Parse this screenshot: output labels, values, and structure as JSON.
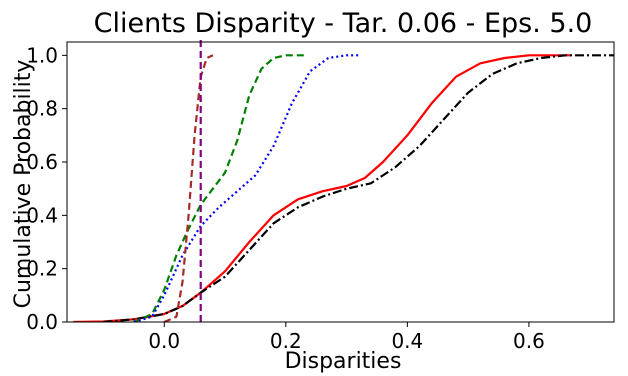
{
  "chart_data": {
    "type": "line",
    "title": "Clients Disparity - Tar. 0.06 - Eps. 5.0",
    "xlabel": "Disparities",
    "ylabel": "Cumulative Probability",
    "xlim": [
      -0.16,
      0.74
    ],
    "ylim": [
      0.0,
      1.05
    ],
    "xticks": [
      "0.0",
      "0.2",
      "0.4",
      "0.6"
    ],
    "xtick_values": [
      0.0,
      0.2,
      0.4,
      0.6
    ],
    "yticks": [
      "0.0",
      "0.2",
      "0.4",
      "0.6",
      "0.8",
      "1.0"
    ],
    "ytick_values": [
      0.0,
      0.2,
      0.4,
      0.6,
      0.8,
      1.0
    ],
    "grid": false,
    "legend": "none",
    "target_line": {
      "x": 0.06,
      "color": "#800080",
      "style": "dashed"
    },
    "series": [
      {
        "color": "#ff0000",
        "style": "solid",
        "x": [
          -0.15,
          -0.1,
          -0.05,
          0.0,
          0.03,
          0.06,
          0.1,
          0.14,
          0.18,
          0.22,
          0.26,
          0.3,
          0.33,
          0.36,
          0.4,
          0.44,
          0.48,
          0.52,
          0.56,
          0.6,
          0.64,
          0.67
        ],
        "values": [
          0.0,
          0.002,
          0.01,
          0.03,
          0.06,
          0.11,
          0.19,
          0.3,
          0.4,
          0.46,
          0.49,
          0.51,
          0.54,
          0.6,
          0.7,
          0.82,
          0.92,
          0.97,
          0.99,
          1.0,
          1.0,
          1.0
        ]
      },
      {
        "color": "#000000",
        "style": "dashdot",
        "x": [
          -0.1,
          -0.05,
          0.0,
          0.03,
          0.06,
          0.1,
          0.14,
          0.18,
          0.22,
          0.26,
          0.3,
          0.34,
          0.38,
          0.42,
          0.46,
          0.5,
          0.54,
          0.58,
          0.62,
          0.66,
          0.7,
          0.74
        ],
        "values": [
          0.0,
          0.01,
          0.03,
          0.06,
          0.11,
          0.17,
          0.27,
          0.37,
          0.43,
          0.47,
          0.5,
          0.52,
          0.58,
          0.66,
          0.76,
          0.86,
          0.93,
          0.97,
          0.99,
          1.0,
          1.0,
          1.0
        ]
      },
      {
        "color": "#008000",
        "style": "dashed",
        "x": [
          -0.05,
          -0.02,
          0.0,
          0.02,
          0.04,
          0.06,
          0.08,
          0.1,
          0.12,
          0.14,
          0.16,
          0.18,
          0.2,
          0.23
        ],
        "values": [
          0.0,
          0.03,
          0.12,
          0.25,
          0.35,
          0.44,
          0.5,
          0.56,
          0.68,
          0.85,
          0.95,
          0.99,
          1.0,
          1.0
        ]
      },
      {
        "color": "#0000ff",
        "style": "dotted",
        "x": [
          -0.05,
          -0.02,
          0.0,
          0.03,
          0.06,
          0.09,
          0.12,
          0.15,
          0.18,
          0.21,
          0.24,
          0.27,
          0.3,
          0.32
        ],
        "values": [
          0.0,
          0.02,
          0.1,
          0.25,
          0.36,
          0.43,
          0.49,
          0.55,
          0.66,
          0.82,
          0.94,
          0.99,
          1.0,
          1.0
        ]
      },
      {
        "color": "#a52a2a",
        "style": "dashed",
        "x": [
          0.0,
          0.02,
          0.03,
          0.04,
          0.05,
          0.06,
          0.07,
          0.08
        ],
        "values": [
          0.0,
          0.02,
          0.15,
          0.4,
          0.7,
          0.92,
          0.99,
          1.0
        ]
      }
    ]
  }
}
